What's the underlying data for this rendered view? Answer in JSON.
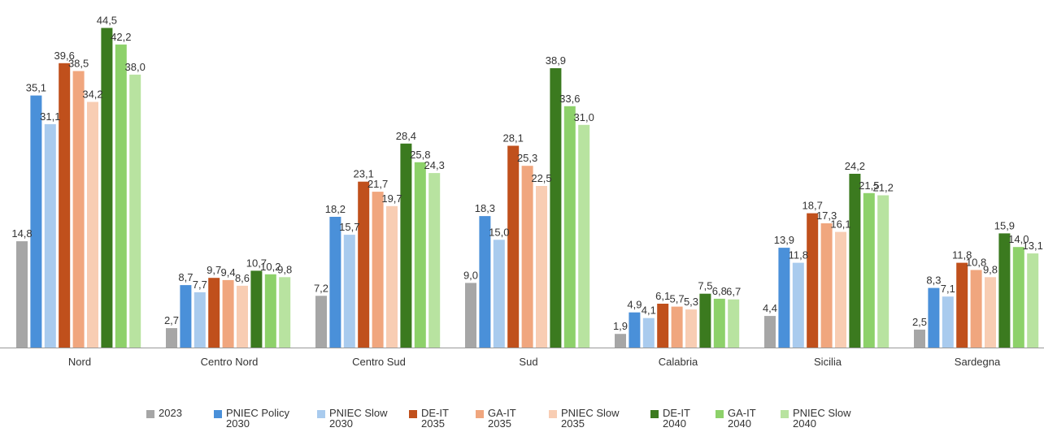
{
  "chart_data": {
    "type": "bar",
    "categories": [
      "Nord",
      "Centro Nord",
      "Centro Sud",
      "Sud",
      "Calabria",
      "Sicilia",
      "Sardegna"
    ],
    "series": [
      {
        "name": "2023",
        "color": "#a6a6a6",
        "values": [
          14.8,
          2.7,
          7.2,
          9.0,
          1.9,
          4.4,
          2.5
        ],
        "labels": [
          "14,8",
          "2,7",
          "7,2",
          "9,0",
          "1,9",
          "4,4",
          "2,5"
        ]
      },
      {
        "name": "PNIEC Policy\n2030",
        "color": "#4a90d9",
        "values": [
          35.1,
          8.7,
          18.2,
          18.3,
          4.9,
          13.9,
          8.3
        ],
        "labels": [
          "35,1",
          "8,7",
          "18,2",
          "18,3",
          "4,9",
          "13,9",
          "8,3"
        ]
      },
      {
        "name": "PNIEC Slow\n2030",
        "color": "#a9cbee",
        "values": [
          31.1,
          7.7,
          15.7,
          15.0,
          4.1,
          11.8,
          7.1
        ],
        "labels": [
          "31,1",
          "7,7",
          "15,7",
          "15,0",
          "4,1",
          "11,8",
          "7,1"
        ]
      },
      {
        "name": "DE-IT\n2035",
        "color": "#c0501c",
        "values": [
          39.6,
          9.7,
          23.1,
          28.1,
          6.1,
          18.7,
          11.8
        ],
        "labels": [
          "39,6",
          "9,7",
          "23,1",
          "28,1",
          "6,1",
          "18,7",
          "11,8"
        ]
      },
      {
        "name": "GA-IT\n2035",
        "color": "#f0a67e",
        "values": [
          38.5,
          9.4,
          21.7,
          25.3,
          5.7,
          17.3,
          10.8
        ],
        "labels": [
          "38,5",
          "9,4",
          "21,7",
          "25,3",
          "5,7",
          "17,3",
          "10,8"
        ]
      },
      {
        "name": "PNIEC Slow\n2035",
        "color": "#f8cdb3",
        "values": [
          34.2,
          8.6,
          19.7,
          22.5,
          5.3,
          16.1,
          9.8
        ],
        "labels": [
          "34,2",
          "8,6",
          "19,7",
          "22,5",
          "5,3",
          "16,1",
          "9,8"
        ]
      },
      {
        "name": "DE-IT\n2040",
        "color": "#3b7a1f",
        "values": [
          44.5,
          10.7,
          28.4,
          38.9,
          7.5,
          24.2,
          15.9
        ],
        "labels": [
          "44,5",
          "10,7",
          "28,4",
          "38,9",
          "7,5",
          "24,2",
          "15,9"
        ]
      },
      {
        "name": "GA-IT\n2040",
        "color": "#8dd16a",
        "values": [
          42.2,
          10.2,
          25.8,
          33.6,
          6.8,
          21.5,
          14.0
        ],
        "labels": [
          "42,2",
          "10,2",
          "25,8",
          "33,6",
          "6,8",
          "21,5",
          "14,0"
        ]
      },
      {
        "name": "PNIEC Slow\n2040",
        "color": "#b8e3a0",
        "values": [
          38.0,
          9.8,
          24.3,
          31.0,
          6.7,
          21.2,
          13.1
        ],
        "labels": [
          "38,0",
          "9,8",
          "24,3",
          "31,0",
          "6,7",
          "21,2",
          "13,1"
        ]
      }
    ],
    "ylim": [
      0,
      45
    ],
    "grid": false,
    "legend_position": "bottom"
  }
}
